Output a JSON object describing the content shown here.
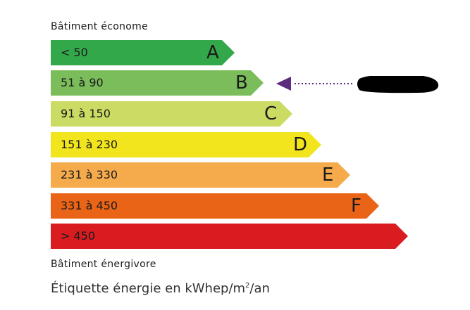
{
  "header": {
    "top_label": "Bâtiment économe",
    "bottom_label": "Bâtiment énergivore"
  },
  "classes": [
    {
      "letter": "A",
      "range": "< 50",
      "color": "#33a84a"
    },
    {
      "letter": "B",
      "range": "51 à 90",
      "color": "#7bbd5a"
    },
    {
      "letter": "C",
      "range": "91 à 150",
      "color": "#cbdb63"
    },
    {
      "letter": "D",
      "range": "151 à 230",
      "color": "#f2e51e"
    },
    {
      "letter": "E",
      "range": "231 à 330",
      "color": "#f5ab4c"
    },
    {
      "letter": "F",
      "range": "331 à 450",
      "color": "#ea6418"
    },
    {
      "letter": "",
      "range": "> 450",
      "color": "#d91c20"
    }
  ],
  "indicator": {
    "selected_class": "B",
    "color": "#5b2b7e"
  },
  "footer": {
    "unit_label_prefix": "Étiquette énergie en kWhep/m",
    "unit_sup": "2",
    "unit_label_suffix": "/an"
  }
}
